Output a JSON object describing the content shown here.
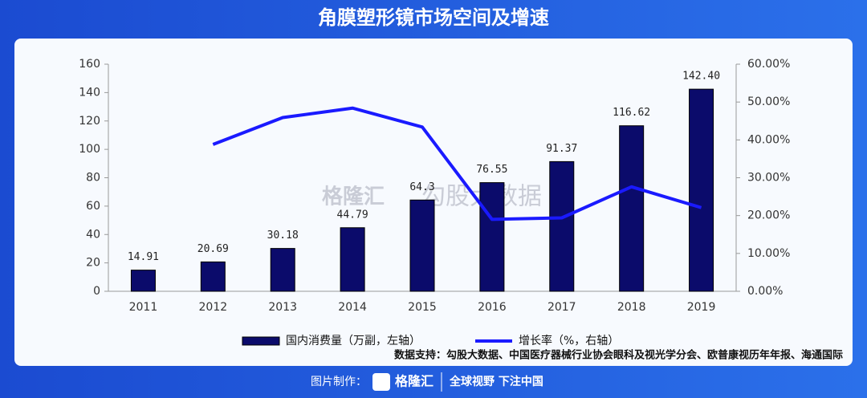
{
  "chart_data": {
    "type": "bar",
    "title": "角膜塑形镜市场空间及增速",
    "categories": [
      "2011",
      "2012",
      "2013",
      "2014",
      "2015",
      "2016",
      "2017",
      "2018",
      "2019"
    ],
    "series": [
      {
        "name": "国内消费量（万副，左轴）",
        "type": "bar",
        "color": "#0b0b6b",
        "values": [
          14.91,
          20.69,
          30.18,
          44.79,
          64.3,
          76.55,
          91.37,
          116.62,
          142.4
        ],
        "value_labels": [
          "14.91",
          "20.69",
          "30.18",
          "44.79",
          "64.3",
          "76.55",
          "91.37",
          "116.62",
          "142.40"
        ]
      },
      {
        "name": "增长率（%，右轴）",
        "type": "line",
        "axis": "y2",
        "color": "#1a1aff",
        "values": [
          null,
          38.8,
          45.9,
          48.4,
          43.4,
          19.0,
          19.4,
          27.6,
          22.1
        ]
      }
    ],
    "ylim": [
      0,
      160
    ],
    "yticks": [
      0,
      20,
      40,
      60,
      80,
      100,
      120,
      140,
      160
    ],
    "y2lim": [
      0,
      60
    ],
    "y2ticks": [
      {
        "value": 0,
        "label": "0.00%"
      },
      {
        "value": 10,
        "label": "10.00%"
      },
      {
        "value": 20,
        "label": "20.00%"
      },
      {
        "value": 30,
        "label": "30.00%"
      },
      {
        "value": 40,
        "label": "40.00%"
      },
      {
        "value": 50,
        "label": "50.00%"
      },
      {
        "value": 60,
        "label": "60.00%"
      }
    ],
    "grid": false,
    "source": "数据支持：勾股大数据、中国医疗器械行业协会眼科及视光学分会、欧普康视历年年报、海通国际",
    "watermark": [
      "格隆汇",
      "勾股大数据"
    ]
  },
  "footer": {
    "made_by": "图片制作：",
    "brand": "格隆汇",
    "slogan": "全球视野 下注中国"
  }
}
